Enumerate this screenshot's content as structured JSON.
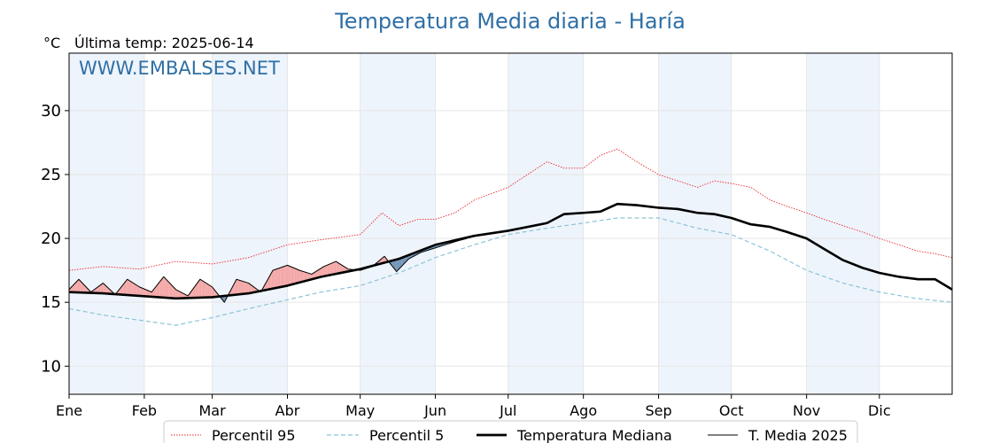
{
  "title": "Temperatura Media diaria - Haría",
  "unit": "°C",
  "last_temp": "Última temp: 2025-06-14",
  "watermark": "WWW.EMBALSES.NET",
  "colors": {
    "title": "#2f6fa5",
    "p95": "#e8262a",
    "p5": "#8cc4d8",
    "median": "#000000",
    "year": "#000000",
    "above_fill": "#f4a6a6",
    "below_fill": "#6f94b8",
    "month_band": "#eef4fb"
  },
  "chart_data": {
    "type": "line",
    "title": "Temperatura Media diaria - Haría",
    "ylabel": "°C",
    "ylim": [
      7.8,
      34.5
    ],
    "yticks": [
      10,
      15,
      20,
      25,
      30
    ],
    "months": [
      "Ene",
      "Feb",
      "Mar",
      "Abr",
      "May",
      "Jun",
      "Jul",
      "Ago",
      "Sep",
      "Oct",
      "Nov",
      "Dic"
    ],
    "month_start_days": [
      1,
      32,
      60,
      91,
      121,
      152,
      182,
      213,
      244,
      274,
      305,
      335
    ],
    "grid": true,
    "legend_position": "bottom",
    "series": [
      {
        "name": "Percentil 95",
        "style": "dotted-red",
        "x": [
          1,
          15,
          30,
          45,
          60,
          75,
          91,
          105,
          121,
          130,
          137,
          145,
          152,
          160,
          168,
          175,
          182,
          190,
          198,
          205,
          213,
          220,
          227,
          235,
          244,
          252,
          260,
          267,
          274,
          282,
          290,
          297,
          305,
          312,
          320,
          328,
          335,
          343,
          351,
          358,
          365
        ],
        "values": [
          17.5,
          17.8,
          17.6,
          18.2,
          18.0,
          18.5,
          19.5,
          19.9,
          20.3,
          22.0,
          21.0,
          21.5,
          21.5,
          22.0,
          23.0,
          23.5,
          24.0,
          25.0,
          26.0,
          25.5,
          25.5,
          26.5,
          27.0,
          26.0,
          25.0,
          24.5,
          24.0,
          24.5,
          24.3,
          24.0,
          23.0,
          22.5,
          22.0,
          21.5,
          21.0,
          20.5,
          20.0,
          19.5,
          19.0,
          18.8,
          18.5
        ]
      },
      {
        "name": "Percentil 5",
        "style": "dashed-lightblue",
        "x": [
          1,
          15,
          30,
          45,
          60,
          75,
          91,
          105,
          121,
          137,
          152,
          168,
          182,
          198,
          213,
          227,
          244,
          260,
          274,
          290,
          305,
          320,
          335,
          350,
          365
        ],
        "values": [
          14.5,
          14.0,
          13.6,
          13.2,
          13.8,
          14.5,
          15.2,
          15.8,
          16.3,
          17.3,
          18.5,
          19.5,
          20.3,
          20.8,
          21.2,
          21.6,
          21.6,
          20.8,
          20.3,
          19.0,
          17.5,
          16.5,
          15.8,
          15.3,
          15.0
        ]
      },
      {
        "name": "Temperatura Mediana",
        "style": "thick-black",
        "x": [
          1,
          15,
          30,
          45,
          60,
          75,
          91,
          105,
          121,
          137,
          152,
          168,
          182,
          198,
          205,
          213,
          220,
          227,
          235,
          244,
          252,
          260,
          267,
          274,
          282,
          290,
          297,
          305,
          312,
          320,
          328,
          335,
          343,
          351,
          358,
          365
        ],
        "values": [
          15.8,
          15.7,
          15.5,
          15.3,
          15.4,
          15.7,
          16.3,
          17.0,
          17.6,
          18.4,
          19.5,
          20.2,
          20.6,
          21.2,
          21.9,
          22.0,
          22.1,
          22.7,
          22.6,
          22.4,
          22.3,
          22.0,
          21.9,
          21.6,
          21.1,
          20.9,
          20.5,
          20.0,
          19.2,
          18.3,
          17.7,
          17.3,
          17.0,
          16.8,
          16.8,
          16.0
        ]
      },
      {
        "name": "T. Media 2025",
        "style": "thin-black",
        "x": [
          1,
          5,
          10,
          15,
          20,
          25,
          30,
          35,
          40,
          45,
          50,
          55,
          60,
          65,
          70,
          75,
          80,
          85,
          91,
          96,
          101,
          106,
          111,
          116,
          121,
          126,
          131,
          136,
          141,
          146,
          151,
          156,
          161,
          165
        ],
        "values": [
          16.0,
          16.8,
          15.8,
          16.5,
          15.6,
          16.8,
          16.2,
          15.8,
          17.0,
          16.0,
          15.5,
          16.8,
          16.2,
          15.0,
          16.8,
          16.5,
          15.8,
          17.5,
          17.9,
          17.5,
          17.2,
          17.8,
          18.2,
          17.6,
          17.5,
          17.8,
          18.6,
          17.4,
          18.4,
          18.9,
          19.2,
          19.5,
          19.8,
          20.0
        ]
      }
    ]
  }
}
